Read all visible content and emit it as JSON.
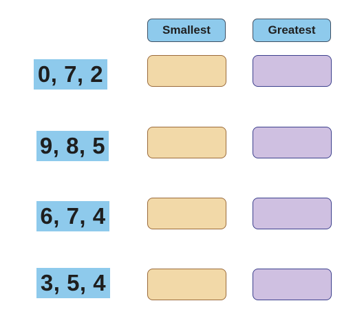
{
  "headers": {
    "smallest": "Smallest",
    "greatest": "Greatest"
  },
  "rows": [
    {
      "numbers": "0, 7, 2"
    },
    {
      "numbers": "9, 8, 5"
    },
    {
      "numbers": "6, 7, 4"
    },
    {
      "numbers": "3, 5, 4"
    }
  ],
  "colors": {
    "label_bg": "#8ecaec",
    "header_bg": "#8ecaec",
    "smallest_box_bg": "#f2d9a8",
    "smallest_box_border": "#9a6a3a",
    "greatest_box_bg": "#cfc0e1",
    "greatest_box_border": "#3b3f8c"
  }
}
